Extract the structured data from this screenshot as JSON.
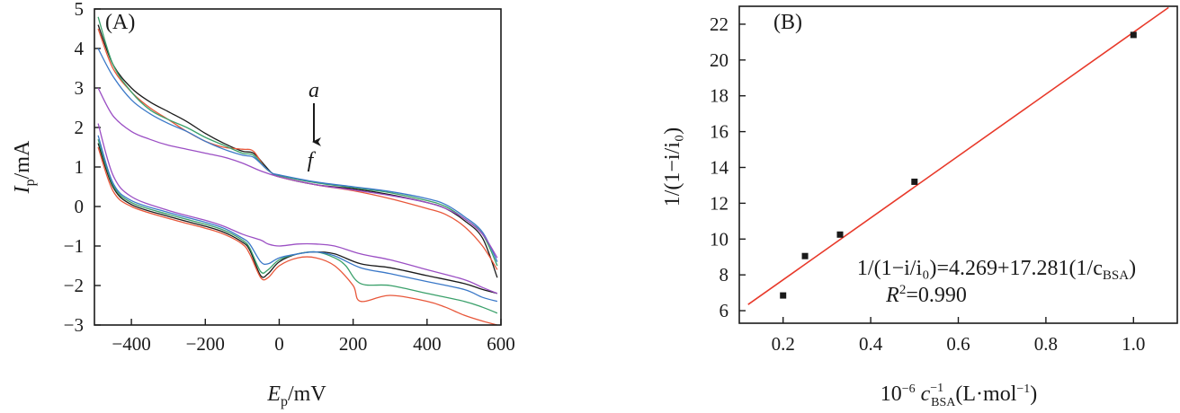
{
  "chart_data": [
    {
      "panel_label": "(A)",
      "type": "line",
      "xlabel": {
        "main": "E",
        "sub": "p",
        "unit": "/mV"
      },
      "ylabel": {
        "main": "I",
        "sub": "p",
        "unit": "/mA"
      },
      "xlim": [
        -500,
        600
      ],
      "ylim": [
        -3,
        5
      ],
      "xticks": [
        -400,
        -200,
        0,
        200,
        400,
        600
      ],
      "yticks": [
        5,
        4,
        3,
        2,
        1,
        0,
        -1,
        -2,
        -3
      ],
      "xtick_labels": [
        "−400",
        "−200",
        "0",
        "200",
        "400",
        "600"
      ],
      "ytick_labels": [
        "5",
        "4",
        "3",
        "2",
        "1",
        "0",
        "−1",
        "−2",
        "−3"
      ],
      "annotation": {
        "top": "a",
        "bottom": "f",
        "x": 95,
        "y_top": 3.0,
        "y_bottom": 1.2
      },
      "series": [
        {
          "color": "#1a1a1a",
          "forward": [
            [
              -490,
              4.6
            ],
            [
              -450,
              3.6
            ],
            [
              -400,
              3.0
            ],
            [
              -350,
              2.65
            ],
            [
              -300,
              2.4
            ],
            [
              -250,
              2.15
            ],
            [
              -200,
              1.85
            ],
            [
              -150,
              1.6
            ],
            [
              -100,
              1.4
            ],
            [
              -70,
              1.35
            ],
            [
              -40,
              1.05
            ],
            [
              -20,
              0.85
            ],
            [
              0,
              0.75
            ],
            [
              100,
              0.55
            ],
            [
              200,
              0.45
            ],
            [
              300,
              0.3
            ],
            [
              400,
              0.1
            ],
            [
              450,
              -0.05
            ],
            [
              500,
              -0.35
            ],
            [
              550,
              -0.8
            ],
            [
              590,
              -1.8
            ]
          ],
          "reverse": [
            [
              590,
              -2.2
            ],
            [
              550,
              -2.1
            ],
            [
              500,
              -1.95
            ],
            [
              400,
              -1.75
            ],
            [
              300,
              -1.55
            ],
            [
              220,
              -1.45
            ],
            [
              150,
              -1.2
            ],
            [
              100,
              -1.15
            ],
            [
              50,
              -1.2
            ],
            [
              0,
              -1.4
            ],
            [
              -30,
              -1.7
            ],
            [
              -50,
              -1.75
            ],
            [
              -80,
              -1.1
            ],
            [
              -100,
              -0.9
            ],
            [
              -150,
              -0.65
            ],
            [
              -200,
              -0.5
            ],
            [
              -300,
              -0.25
            ],
            [
              -400,
              0.05
            ],
            [
              -450,
              0.5
            ],
            [
              -490,
              1.6
            ]
          ]
        },
        {
          "color": "#e8573a",
          "forward": [
            [
              -490,
              4.5
            ],
            [
              -450,
              3.5
            ],
            [
              -400,
              2.9
            ],
            [
              -350,
              2.5
            ],
            [
              -300,
              2.2
            ],
            [
              -250,
              1.9
            ],
            [
              -200,
              1.65
            ],
            [
              -150,
              1.5
            ],
            [
              -100,
              1.45
            ],
            [
              -70,
              1.4
            ],
            [
              -40,
              1.0
            ],
            [
              -20,
              0.85
            ],
            [
              0,
              0.75
            ],
            [
              100,
              0.55
            ],
            [
              200,
              0.4
            ],
            [
              300,
              0.2
            ],
            [
              400,
              -0.05
            ],
            [
              450,
              -0.2
            ],
            [
              500,
              -0.5
            ],
            [
              550,
              -1.0
            ],
            [
              590,
              -1.6
            ]
          ],
          "reverse": [
            [
              590,
              -3.0
            ],
            [
              550,
              -2.9
            ],
            [
              500,
              -2.75
            ],
            [
              450,
              -2.55
            ],
            [
              400,
              -2.4
            ],
            [
              300,
              -2.25
            ],
            [
              220,
              -2.4
            ],
            [
              200,
              -2.0
            ],
            [
              150,
              -1.5
            ],
            [
              100,
              -1.3
            ],
            [
              50,
              -1.3
            ],
            [
              0,
              -1.5
            ],
            [
              -30,
              -1.8
            ],
            [
              -50,
              -1.8
            ],
            [
              -80,
              -1.2
            ],
            [
              -100,
              -0.95
            ],
            [
              -150,
              -0.7
            ],
            [
              -200,
              -0.55
            ],
            [
              -300,
              -0.3
            ],
            [
              -400,
              0.0
            ],
            [
              -450,
              0.4
            ],
            [
              -490,
              1.5
            ]
          ]
        },
        {
          "color": "#3aa06a",
          "forward": [
            [
              -490,
              4.8
            ],
            [
              -450,
              3.6
            ],
            [
              -400,
              2.9
            ],
            [
              -350,
              2.45
            ],
            [
              -300,
              2.2
            ],
            [
              -250,
              2.0
            ],
            [
              -200,
              1.75
            ],
            [
              -150,
              1.55
            ],
            [
              -100,
              1.35
            ],
            [
              -70,
              1.3
            ],
            [
              -40,
              1.0
            ],
            [
              -20,
              0.85
            ],
            [
              0,
              0.78
            ],
            [
              100,
              0.6
            ],
            [
              200,
              0.48
            ],
            [
              300,
              0.35
            ],
            [
              400,
              0.15
            ],
            [
              450,
              0.0
            ],
            [
              500,
              -0.3
            ],
            [
              550,
              -0.7
            ],
            [
              590,
              -1.5
            ]
          ],
          "reverse": [
            [
              590,
              -2.7
            ],
            [
              550,
              -2.55
            ],
            [
              500,
              -2.4
            ],
            [
              400,
              -2.2
            ],
            [
              300,
              -2.0
            ],
            [
              220,
              -1.95
            ],
            [
              180,
              -1.5
            ],
            [
              150,
              -1.3
            ],
            [
              100,
              -1.15
            ],
            [
              50,
              -1.2
            ],
            [
              0,
              -1.35
            ],
            [
              -30,
              -1.6
            ],
            [
              -50,
              -1.65
            ],
            [
              -80,
              -1.05
            ],
            [
              -100,
              -0.85
            ],
            [
              -150,
              -0.6
            ],
            [
              -200,
              -0.45
            ],
            [
              -300,
              -0.2
            ],
            [
              -400,
              0.1
            ],
            [
              -450,
              0.55
            ],
            [
              -490,
              1.7
            ]
          ]
        },
        {
          "color": "#3a78c8",
          "forward": [
            [
              -490,
              4.0
            ],
            [
              -450,
              3.3
            ],
            [
              -400,
              2.7
            ],
            [
              -350,
              2.35
            ],
            [
              -300,
              2.1
            ],
            [
              -250,
              1.9
            ],
            [
              -200,
              1.65
            ],
            [
              -150,
              1.45
            ],
            [
              -100,
              1.3
            ],
            [
              -70,
              1.25
            ],
            [
              -40,
              1.0
            ],
            [
              -20,
              0.85
            ],
            [
              0,
              0.8
            ],
            [
              100,
              0.62
            ],
            [
              200,
              0.5
            ],
            [
              300,
              0.38
            ],
            [
              400,
              0.2
            ],
            [
              450,
              0.05
            ],
            [
              500,
              -0.25
            ],
            [
              550,
              -0.65
            ],
            [
              590,
              -1.4
            ]
          ],
          "reverse": [
            [
              590,
              -2.4
            ],
            [
              550,
              -2.3
            ],
            [
              500,
              -2.1
            ],
            [
              400,
              -1.9
            ],
            [
              300,
              -1.7
            ],
            [
              220,
              -1.55
            ],
            [
              150,
              -1.25
            ],
            [
              100,
              -1.15
            ],
            [
              50,
              -1.2
            ],
            [
              0,
              -1.3
            ],
            [
              -30,
              -1.45
            ],
            [
              -50,
              -1.4
            ],
            [
              -80,
              -0.95
            ],
            [
              -100,
              -0.8
            ],
            [
              -150,
              -0.55
            ],
            [
              -200,
              -0.4
            ],
            [
              -300,
              -0.15
            ],
            [
              -400,
              0.15
            ],
            [
              -450,
              0.6
            ],
            [
              -490,
              1.8
            ]
          ]
        },
        {
          "color": "#9b4fc4",
          "forward": [
            [
              -490,
              3.0
            ],
            [
              -450,
              2.3
            ],
            [
              -400,
              1.9
            ],
            [
              -350,
              1.7
            ],
            [
              -300,
              1.55
            ],
            [
              -250,
              1.45
            ],
            [
              -200,
              1.35
            ],
            [
              -150,
              1.25
            ],
            [
              -100,
              1.1
            ],
            [
              -50,
              0.9
            ],
            [
              0,
              0.75
            ],
            [
              100,
              0.55
            ],
            [
              200,
              0.42
            ],
            [
              300,
              0.28
            ],
            [
              400,
              0.1
            ],
            [
              450,
              -0.05
            ],
            [
              500,
              -0.3
            ],
            [
              550,
              -0.7
            ],
            [
              590,
              -1.3
            ]
          ],
          "reverse": [
            [
              590,
              -2.2
            ],
            [
              550,
              -2.05
            ],
            [
              500,
              -1.85
            ],
            [
              400,
              -1.6
            ],
            [
              300,
              -1.35
            ],
            [
              220,
              -1.2
            ],
            [
              150,
              -1.0
            ],
            [
              100,
              -0.95
            ],
            [
              50,
              -0.95
            ],
            [
              0,
              -1.0
            ],
            [
              -30,
              -0.95
            ],
            [
              -50,
              -0.85
            ],
            [
              -100,
              -0.7
            ],
            [
              -150,
              -0.5
            ],
            [
              -200,
              -0.35
            ],
            [
              -300,
              -0.1
            ],
            [
              -400,
              0.25
            ],
            [
              -450,
              0.8
            ],
            [
              -490,
              2.1
            ]
          ]
        }
      ]
    },
    {
      "panel_label": "(B)",
      "type": "scatter",
      "xlabel": {
        "prefix": "10",
        "prefix_sup": "−6",
        "main": "c",
        "sup": "−1",
        "sub": "BSA",
        "unit": "(L·mol",
        "unit_sup": "−1",
        "unit_end": ")"
      },
      "ylabel": {
        "text": "1/(1−i/i₀)"
      },
      "xlim": [
        0.1,
        1.1
      ],
      "ylim": [
        5.3,
        23
      ],
      "xticks": [
        0.2,
        0.4,
        0.6,
        0.8,
        1.0
      ],
      "yticks": [
        6,
        8,
        10,
        12,
        14,
        16,
        18,
        20,
        22
      ],
      "xtick_labels": [
        "0.2",
        "0.4",
        "0.6",
        "0.8",
        "1.0"
      ],
      "ytick_labels": [
        "6",
        "8",
        "10",
        "12",
        "14",
        "16",
        "18",
        "20",
        "22"
      ],
      "points": [
        [
          0.2,
          6.85
        ],
        [
          0.25,
          9.05
        ],
        [
          0.33,
          10.25
        ],
        [
          0.5,
          13.2
        ],
        [
          1.0,
          21.4
        ]
      ],
      "fit": {
        "intercept": 4.269,
        "slope": 17.281,
        "color": "#e8392a",
        "x_range": [
          0.12,
          1.08
        ]
      },
      "equation": "1/(1−i/i₀)=4.269+17.281(1/c",
      "equation_sub": "BSA",
      "equation_end": ")",
      "r2_label": "R",
      "r2_sup": "2",
      "r2_value": "=0.990"
    }
  ]
}
